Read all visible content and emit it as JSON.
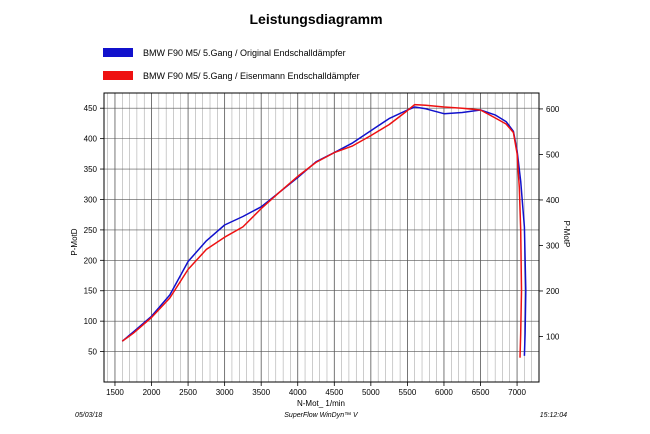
{
  "chart_data": {
    "type": "line",
    "title": "Leistungsdiagramm",
    "xlabel": "N-Mot_ 1/min",
    "ylabel_left": "P-MotD",
    "ylabel_right": "P-MotP",
    "xlim": [
      1350,
      7300
    ],
    "ylim_left": [
      0,
      475
    ],
    "ylim_right": [
      0,
      635
    ],
    "x_ticks": [
      1500,
      2000,
      2500,
      3000,
      3500,
      4000,
      4500,
      5000,
      5500,
      6000,
      6500,
      7000
    ],
    "y_ticks_left": [
      50,
      100,
      150,
      200,
      250,
      300,
      350,
      400,
      450
    ],
    "y_ticks_right": [
      100,
      200,
      300,
      400,
      500,
      600
    ],
    "grid": true,
    "legend_position": "top-left",
    "series": [
      {
        "name": "BMW F90 M5/ 5.Gang / Original Endschalldämpfer",
        "color": "#1111cc",
        "points": [
          [
            1600,
            67
          ],
          [
            1750,
            82
          ],
          [
            2000,
            108
          ],
          [
            2250,
            143
          ],
          [
            2500,
            198
          ],
          [
            2750,
            232
          ],
          [
            3000,
            258
          ],
          [
            3250,
            272
          ],
          [
            3500,
            288
          ],
          [
            3750,
            312
          ],
          [
            4000,
            336
          ],
          [
            4250,
            362
          ],
          [
            4500,
            377
          ],
          [
            4750,
            393
          ],
          [
            5000,
            413
          ],
          [
            5250,
            433
          ],
          [
            5500,
            447
          ],
          [
            5600,
            452
          ],
          [
            5750,
            449
          ],
          [
            6000,
            441
          ],
          [
            6250,
            443
          ],
          [
            6500,
            447
          ],
          [
            6700,
            439
          ],
          [
            6850,
            428
          ],
          [
            6950,
            412
          ],
          [
            7000,
            380
          ],
          [
            7050,
            330
          ],
          [
            7100,
            255
          ],
          [
            7120,
            150
          ],
          [
            7110,
            80
          ],
          [
            7100,
            43
          ]
        ]
      },
      {
        "name": "BMW F90 M5/ 5.Gang / Eisenmann Endschalldämpfer",
        "color": "#ee1111",
        "points": [
          [
            1600,
            67
          ],
          [
            1750,
            80
          ],
          [
            2000,
            106
          ],
          [
            2250,
            138
          ],
          [
            2500,
            185
          ],
          [
            2750,
            218
          ],
          [
            3000,
            238
          ],
          [
            3250,
            255
          ],
          [
            3500,
            285
          ],
          [
            3750,
            312
          ],
          [
            4000,
            338
          ],
          [
            4250,
            361
          ],
          [
            4500,
            377
          ],
          [
            4750,
            388
          ],
          [
            5000,
            405
          ],
          [
            5250,
            423
          ],
          [
            5500,
            446
          ],
          [
            5600,
            456
          ],
          [
            5750,
            455
          ],
          [
            6000,
            452
          ],
          [
            6250,
            450
          ],
          [
            6500,
            447
          ],
          [
            6700,
            434
          ],
          [
            6850,
            424
          ],
          [
            6950,
            410
          ],
          [
            7000,
            375
          ],
          [
            7030,
            320
          ],
          [
            7050,
            250
          ],
          [
            7060,
            150
          ],
          [
            7050,
            80
          ],
          [
            7040,
            40
          ]
        ]
      }
    ]
  },
  "footer": {
    "date": "05/03/18",
    "software": "SuperFlow WinDyn™ V",
    "time": "15:12:04"
  }
}
